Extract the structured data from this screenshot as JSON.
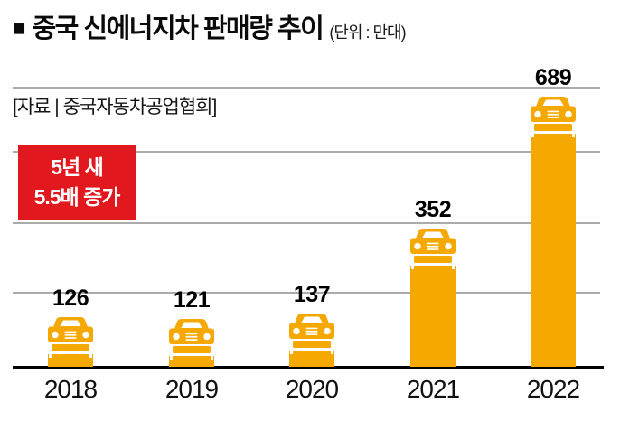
{
  "header": {
    "marker": "■",
    "title": "중국 신에너지차 판매량 추이",
    "unit": "(단위 : 만대)"
  },
  "source": "[자료 | 중국자동차공업협회]",
  "badge": {
    "line1": "5년 새",
    "line2": "5.5배 증가",
    "bg_color": "#E1191E",
    "text_color": "#FFFFFF"
  },
  "chart_data": {
    "type": "bar",
    "title": "중국 신에너지차 판매량 추이",
    "unit_label": "(단위 : 만대)",
    "unit": "만대",
    "categories": [
      "2018",
      "2019",
      "2020",
      "2021",
      "2022"
    ],
    "values": [
      126,
      121,
      137,
      352,
      689
    ],
    "xlabel": "",
    "ylabel": "",
    "bar_color": "#F5A800",
    "bar_icon": "car-front-icon",
    "annotation": "5년 새 5.5배 증가",
    "source": "[자료 | 중국자동차공업협회]",
    "gridlines": {
      "horizontal_count": 4,
      "labeled": false,
      "color": "#ABABAB"
    },
    "axis_color": "#000000",
    "legend_position": "none"
  }
}
